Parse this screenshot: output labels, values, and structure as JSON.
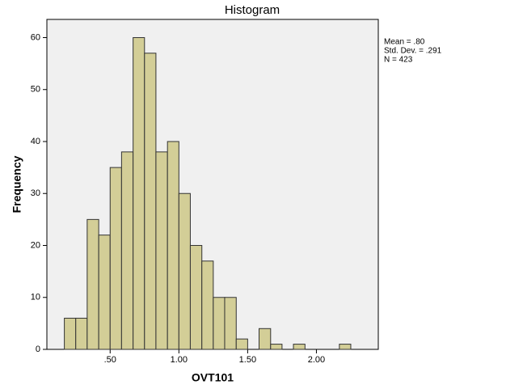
{
  "chart_data": {
    "type": "histogram",
    "title": "Histogram",
    "x_label": "OVT101",
    "y_label": "Frequency",
    "bins": [
      0.167,
      0.25,
      0.333,
      0.417,
      0.5,
      0.583,
      0.667,
      0.75,
      0.833,
      0.917,
      1.0,
      1.083,
      1.167,
      1.25,
      1.333,
      1.417,
      1.5,
      1.583,
      1.667,
      1.75,
      1.833,
      1.917,
      2.0,
      2.083,
      2.167,
      2.25
    ],
    "values": [
      6,
      6,
      25,
      22,
      35,
      38,
      60,
      57,
      38,
      40,
      30,
      20,
      17,
      10,
      10,
      2,
      0,
      4,
      1,
      0,
      1,
      0,
      0,
      0,
      1
    ],
    "color": "#d3ce97",
    "xlim": [
      0.04,
      2.45
    ],
    "xticks": [
      {
        "value": 0.5,
        "label": ".50"
      },
      {
        "value": 1.0,
        "label": "1.00"
      },
      {
        "value": 1.5,
        "label": "1.50"
      },
      {
        "value": 2.0,
        "label": "2.00"
      }
    ],
    "ylim": [
      0,
      63.5
    ],
    "yticks": [
      0,
      10,
      20,
      30,
      40,
      50,
      60
    ],
    "annotations": [
      "Mean = .80",
      "Std. Dev. = .291",
      "N = 423"
    ]
  }
}
